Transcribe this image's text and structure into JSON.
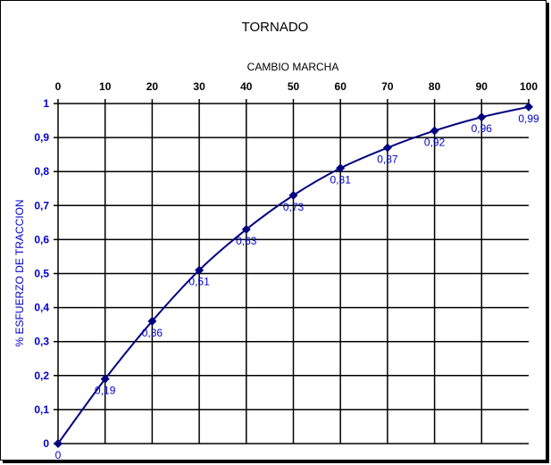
{
  "chart_data": {
    "type": "line",
    "title": "TORNADO",
    "xlabel": "CAMBIO MARCHA",
    "ylabel": "% ESFUERZO DE TRACCION",
    "x": [
      0,
      10,
      20,
      30,
      40,
      50,
      60,
      70,
      80,
      90,
      100
    ],
    "values": [
      0,
      0.19,
      0.36,
      0.51,
      0.63,
      0.73,
      0.81,
      0.87,
      0.92,
      0.96,
      0.99
    ],
    "data_labels": [
      "0",
      "0,19",
      "0,36",
      "0,51",
      "0,63",
      "0,73",
      "0,81",
      "0,87",
      "0,92",
      "0,96",
      "0,99"
    ],
    "xlim": [
      0,
      100
    ],
    "ylim": [
      0,
      1
    ],
    "x_ticks": [
      "0",
      "10",
      "20",
      "30",
      "40",
      "50",
      "60",
      "70",
      "80",
      "90",
      "100"
    ],
    "y_ticks": [
      "0",
      "0,1",
      "0,2",
      "0,3",
      "0,4",
      "0,5",
      "0,6",
      "0,7",
      "0,8",
      "0,9",
      "1"
    ],
    "x_axis_position": "top",
    "grid": true,
    "line_color": "#000080",
    "label_color": "#0000cc"
  }
}
